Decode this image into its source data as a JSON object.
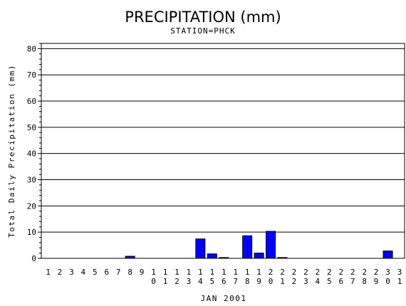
{
  "chart_data": {
    "type": "bar",
    "title": "PRECIPITATION (mm)",
    "subtitle": "STATION=PHCK",
    "xlabel": "JAN 2001",
    "ylabel": "Total Daily Precipitation (mm)",
    "ylim": [
      0,
      82
    ],
    "yticks": [
      0,
      10,
      20,
      30,
      40,
      50,
      60,
      70,
      80
    ],
    "grid": true,
    "bar_color": "#0000ff",
    "categories": [
      "1",
      "2",
      "3",
      "4",
      "5",
      "6",
      "7",
      "8",
      "9",
      "10",
      "11",
      "12",
      "13",
      "14",
      "15",
      "16",
      "17",
      "18",
      "19",
      "20",
      "21",
      "22",
      "23",
      "24",
      "25",
      "26",
      "27",
      "28",
      "29",
      "30",
      "31"
    ],
    "values": [
      0,
      0,
      0,
      0,
      0,
      0,
      0,
      0.8,
      0,
      0,
      0,
      0,
      0,
      7.4,
      1.7,
      0.3,
      0,
      8.6,
      2.0,
      10.3,
      0.3,
      0,
      0,
      0,
      0,
      0,
      0,
      0,
      0,
      2.8,
      0
    ]
  }
}
